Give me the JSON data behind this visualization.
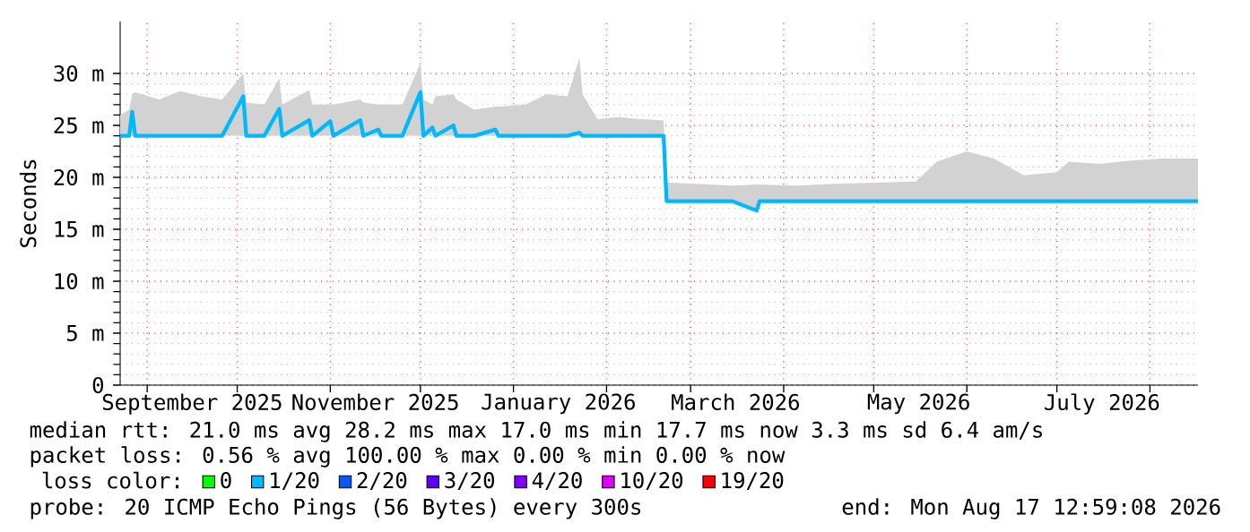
{
  "chart_data": {
    "type": "line",
    "ylabel": "Seconds",
    "legend_title": "loss color:",
    "legend": "bottom",
    "grid": true,
    "marker": "none",
    "line_style": "solid",
    "xlim": [
      "2025-08-23",
      "2026-08-17"
    ],
    "ylim": [
      0,
      35
    ],
    "yticks": [
      0,
      {
        "value": 5,
        "label": "5 m"
      },
      {
        "value": 10,
        "label": "10 m"
      },
      {
        "value": 15,
        "label": "15 m"
      },
      {
        "value": 20,
        "label": "20 m"
      },
      {
        "value": 25,
        "label": "25 m"
      },
      {
        "value": 30,
        "label": "30 m"
      }
    ],
    "xticks": [
      {
        "value": "2025-09-01",
        "label": null
      },
      {
        "value": "2025-10-01",
        "label": null
      },
      {
        "value": "2025-11-01",
        "label": null
      },
      {
        "value": "2025-12-01",
        "label": null
      },
      {
        "value": "2026-01-01",
        "label": null
      },
      {
        "value": "2026-02-01",
        "label": null
      },
      {
        "value": "2026-03-01",
        "label": null
      },
      {
        "value": "2026-04-01",
        "label": null
      },
      {
        "value": "2026-05-01",
        "label": null
      },
      {
        "value": "2026-06-01",
        "label": null
      },
      {
        "value": "2026-07-01",
        "label": null
      },
      {
        "value": "2026-08-01",
        "label": null
      },
      {
        "value": "2025-09-16",
        "label": "September 2025"
      },
      {
        "value": "2025-11-16",
        "label": "November 2025"
      },
      {
        "value": "2026-01-16",
        "label": "January 2026"
      },
      {
        "value": "2026-03-16",
        "label": "March 2026"
      },
      {
        "value": "2026-05-16",
        "label": "May 2026"
      },
      {
        "value": "2026-07-16",
        "label": "July 2026"
      }
    ],
    "x": [
      "2025-08-23",
      "2025-08-26",
      "2025-08-27",
      "2025-08-28",
      "2025-09-05",
      "2025-09-12",
      "2025-09-19",
      "2025-09-26",
      "2025-10-03",
      "2025-10-04",
      "2025-10-10",
      "2025-10-15",
      "2025-10-16",
      "2025-10-25",
      "2025-10-26",
      "2025-11-01",
      "2025-11-02",
      "2025-11-11",
      "2025-11-12",
      "2025-11-17",
      "2025-11-18",
      "2025-11-25",
      "2025-12-01",
      "2025-12-02",
      "2025-12-05",
      "2025-12-06",
      "2025-12-12",
      "2025-12-13",
      "2025-12-19",
      "2025-12-26",
      "2025-12-27",
      "2026-01-05",
      "2026-01-12",
      "2026-01-19",
      "2026-01-23",
      "2026-01-24",
      "2026-01-29",
      "2026-02-05",
      "2026-02-12",
      "2026-02-20",
      "2026-02-21",
      "2026-03-01",
      "2026-03-15",
      "2026-03-23",
      "2026-03-24",
      "2026-04-05",
      "2026-04-20",
      "2026-05-05",
      "2026-05-15",
      "2026-05-22",
      "2026-06-01",
      "2026-06-10",
      "2026-06-20",
      "2026-07-01",
      "2026-07-05",
      "2026-07-15",
      "2026-07-25",
      "2026-08-05",
      "2026-08-12",
      "2026-08-17"
    ],
    "series": [
      {
        "name": "0",
        "color": "#00ff00",
        "values": [
          null,
          null,
          null,
          null,
          null,
          null,
          null,
          null,
          null,
          null,
          null,
          null,
          null,
          null,
          null,
          null,
          null,
          null,
          null,
          null,
          null,
          null,
          null,
          null,
          null,
          null,
          null,
          null,
          null,
          null,
          null,
          null,
          null,
          null,
          null,
          null,
          null,
          null,
          null,
          null,
          null,
          null,
          null,
          null,
          null,
          null,
          null,
          null,
          null,
          null,
          null,
          null,
          null,
          null,
          null,
          null,
          null,
          null,
          null,
          null
        ]
      },
      {
        "name": "1/20",
        "color": "#00b8ff",
        "values": [
          24.0,
          24.0,
          26.3,
          24.0,
          24.0,
          24.0,
          24.0,
          24.0,
          27.8,
          24.0,
          24.0,
          26.6,
          24.0,
          25.5,
          24.0,
          25.4,
          24.0,
          25.5,
          24.0,
          24.6,
          24.0,
          24.0,
          28.2,
          24.0,
          24.8,
          24.0,
          25.0,
          24.0,
          24.0,
          24.6,
          24.0,
          24.0,
          24.0,
          24.0,
          24.3,
          24.0,
          24.0,
          24.0,
          24.0,
          24.0,
          17.7,
          17.7,
          17.7,
          16.8,
          17.7,
          17.7,
          17.7,
          17.7,
          17.7,
          17.7,
          17.7,
          17.7,
          17.7,
          17.7,
          17.7,
          17.7,
          17.7,
          17.7,
          17.7,
          17.7
        ],
        "lower": [
          24.0,
          24.0,
          24.0,
          24.0,
          24.0,
          24.0,
          24.0,
          24.0,
          24.0,
          24.0,
          24.0,
          24.0,
          24.0,
          24.0,
          24.0,
          24.0,
          24.0,
          24.0,
          24.0,
          24.0,
          24.0,
          24.0,
          24.0,
          24.0,
          24.0,
          24.0,
          24.0,
          24.0,
          24.0,
          24.0,
          24.0,
          24.0,
          24.0,
          24.0,
          24.0,
          24.0,
          24.0,
          24.0,
          24.0,
          23.9,
          17.7,
          17.7,
          17.7,
          16.8,
          17.7,
          17.7,
          17.7,
          17.7,
          17.7,
          17.7,
          17.7,
          17.7,
          17.7,
          17.7,
          17.7,
          17.7,
          17.7,
          17.7,
          17.7,
          17.7
        ],
        "upper": [
          26.0,
          26.5,
          28.0,
          28.2,
          27.5,
          28.3,
          27.8,
          27.5,
          30.0,
          27.2,
          27.0,
          29.5,
          27.0,
          28.4,
          27.0,
          27.0,
          27.0,
          27.5,
          27.2,
          27.0,
          27.0,
          27.0,
          31.0,
          27.5,
          27.0,
          27.8,
          28.0,
          27.5,
          26.5,
          26.8,
          26.8,
          27.0,
          28.0,
          27.8,
          31.5,
          28.0,
          25.6,
          25.8,
          25.6,
          25.5,
          19.5,
          19.4,
          19.2,
          19.3,
          19.3,
          19.2,
          19.4,
          19.5,
          19.6,
          21.5,
          22.5,
          21.8,
          20.2,
          20.5,
          21.5,
          21.3,
          21.6,
          21.8,
          21.8,
          21.8
        ]
      },
      {
        "name": "2/20",
        "color": "#0059ff",
        "values": [
          null,
          null,
          null,
          null,
          null,
          null,
          null,
          null,
          null,
          null,
          null,
          null,
          null,
          null,
          null,
          null,
          null,
          null,
          null,
          null,
          null,
          null,
          null,
          null,
          null,
          null,
          null,
          null,
          null,
          null,
          null,
          null,
          null,
          null,
          null,
          null,
          null,
          null,
          null,
          null,
          null,
          null,
          null,
          null,
          null,
          null,
          null,
          null,
          null,
          null,
          null,
          null,
          null,
          null,
          null,
          null,
          null,
          null,
          null,
          null
        ]
      },
      {
        "name": "3/20",
        "color": "#5e00ff",
        "values": [
          null,
          null,
          null,
          null,
          null,
          null,
          null,
          null,
          null,
          null,
          null,
          null,
          null,
          null,
          null,
          null,
          null,
          null,
          null,
          null,
          null,
          null,
          null,
          null,
          null,
          null,
          null,
          null,
          null,
          null,
          null,
          null,
          null,
          null,
          null,
          null,
          null,
          null,
          null,
          null,
          null,
          null,
          null,
          null,
          null,
          null,
          null,
          null,
          null,
          null,
          null,
          null,
          null,
          null,
          null,
          null,
          null,
          null,
          null,
          null
        ]
      },
      {
        "name": "4/20",
        "color": "#7e00ff",
        "values": [
          null,
          null,
          null,
          null,
          null,
          null,
          null,
          null,
          null,
          null,
          null,
          null,
          null,
          null,
          null,
          null,
          null,
          null,
          null,
          null,
          null,
          null,
          null,
          null,
          null,
          null,
          null,
          null,
          null,
          null,
          null,
          null,
          null,
          null,
          null,
          null,
          null,
          null,
          null,
          null,
          null,
          null,
          null,
          null,
          null,
          null,
          null,
          null,
          null,
          null,
          null,
          null,
          null,
          null,
          null,
          null,
          null,
          null,
          null,
          null
        ]
      },
      {
        "name": "10/20",
        "color": "#dd00ff",
        "values": [
          null,
          null,
          null,
          null,
          null,
          null,
          null,
          null,
          null,
          null,
          null,
          null,
          null,
          null,
          null,
          null,
          null,
          null,
          null,
          null,
          null,
          null,
          null,
          null,
          null,
          null,
          null,
          null,
          null,
          null,
          null,
          null,
          null,
          null,
          null,
          null,
          null,
          null,
          null,
          null,
          null,
          null,
          null,
          null,
          null,
          null,
          null,
          null,
          null,
          null,
          null,
          null,
          null,
          null,
          null,
          null,
          null,
          null,
          null,
          null
        ]
      },
      {
        "name": "19/20",
        "color": "#ff0000",
        "values": [
          null,
          null,
          null,
          null,
          null,
          null,
          null,
          null,
          null,
          null,
          null,
          null,
          null,
          null,
          null,
          null,
          null,
          null,
          null,
          null,
          null,
          null,
          null,
          null,
          null,
          null,
          null,
          null,
          null,
          null,
          null,
          null,
          null,
          null,
          null,
          null,
          null,
          null,
          null,
          null,
          null,
          null,
          null,
          null,
          null,
          null,
          null,
          null,
          null,
          null,
          null,
          null,
          null,
          null,
          null,
          null,
          null,
          null,
          null,
          null
        ]
      }
    ],
    "annotations": [
      "median rtt:  21.0 ms avg  28.2 ms max  17.0 ms min  17.7 ms now  3.3 ms sd  6.4   am/s",
      "packet loss: 0.56 % avg  100.00 % max  0.00 % min  0.00 % now",
      "probe:       20 ICMP Echo Pings (56 Bytes) every 300s",
      "end: Mon Aug 17 12:59:08 2026"
    ]
  }
}
